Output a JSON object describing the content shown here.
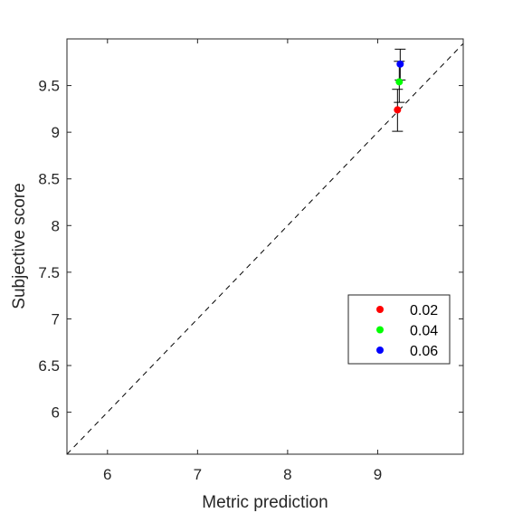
{
  "chart_data": {
    "type": "scatter",
    "xlabel": "Metric prediction",
    "ylabel": "Subjective score",
    "xlim": [
      5.55,
      9.95
    ],
    "ylim": [
      5.55,
      10.0
    ],
    "x_ticks": [
      6,
      7,
      8,
      9
    ],
    "y_ticks": [
      6,
      6.5,
      7,
      7.5,
      8,
      8.5,
      9,
      9.5
    ],
    "x_tick_labels": [
      "6",
      "7",
      "8",
      "9"
    ],
    "y_tick_labels": [
      "6",
      "6.5",
      "7",
      "7.5",
      "8",
      "8.5",
      "9",
      "9.5"
    ],
    "grid": false,
    "legend_position": "bottom-right",
    "reference_line": "y = x (dashed)",
    "series": [
      {
        "name": "0.02",
        "color": "#ff0000",
        "x": 9.22,
        "y": 9.24,
        "err_low": 9.01,
        "err_high": 9.46
      },
      {
        "name": "0.04",
        "color": "#00ff00",
        "x": 9.24,
        "y": 9.54,
        "err_low": 9.32,
        "err_high": 9.76
      },
      {
        "name": "0.06",
        "color": "#0000ff",
        "x": 9.25,
        "y": 9.73,
        "err_low": 9.56,
        "err_high": 9.89
      }
    ]
  }
}
